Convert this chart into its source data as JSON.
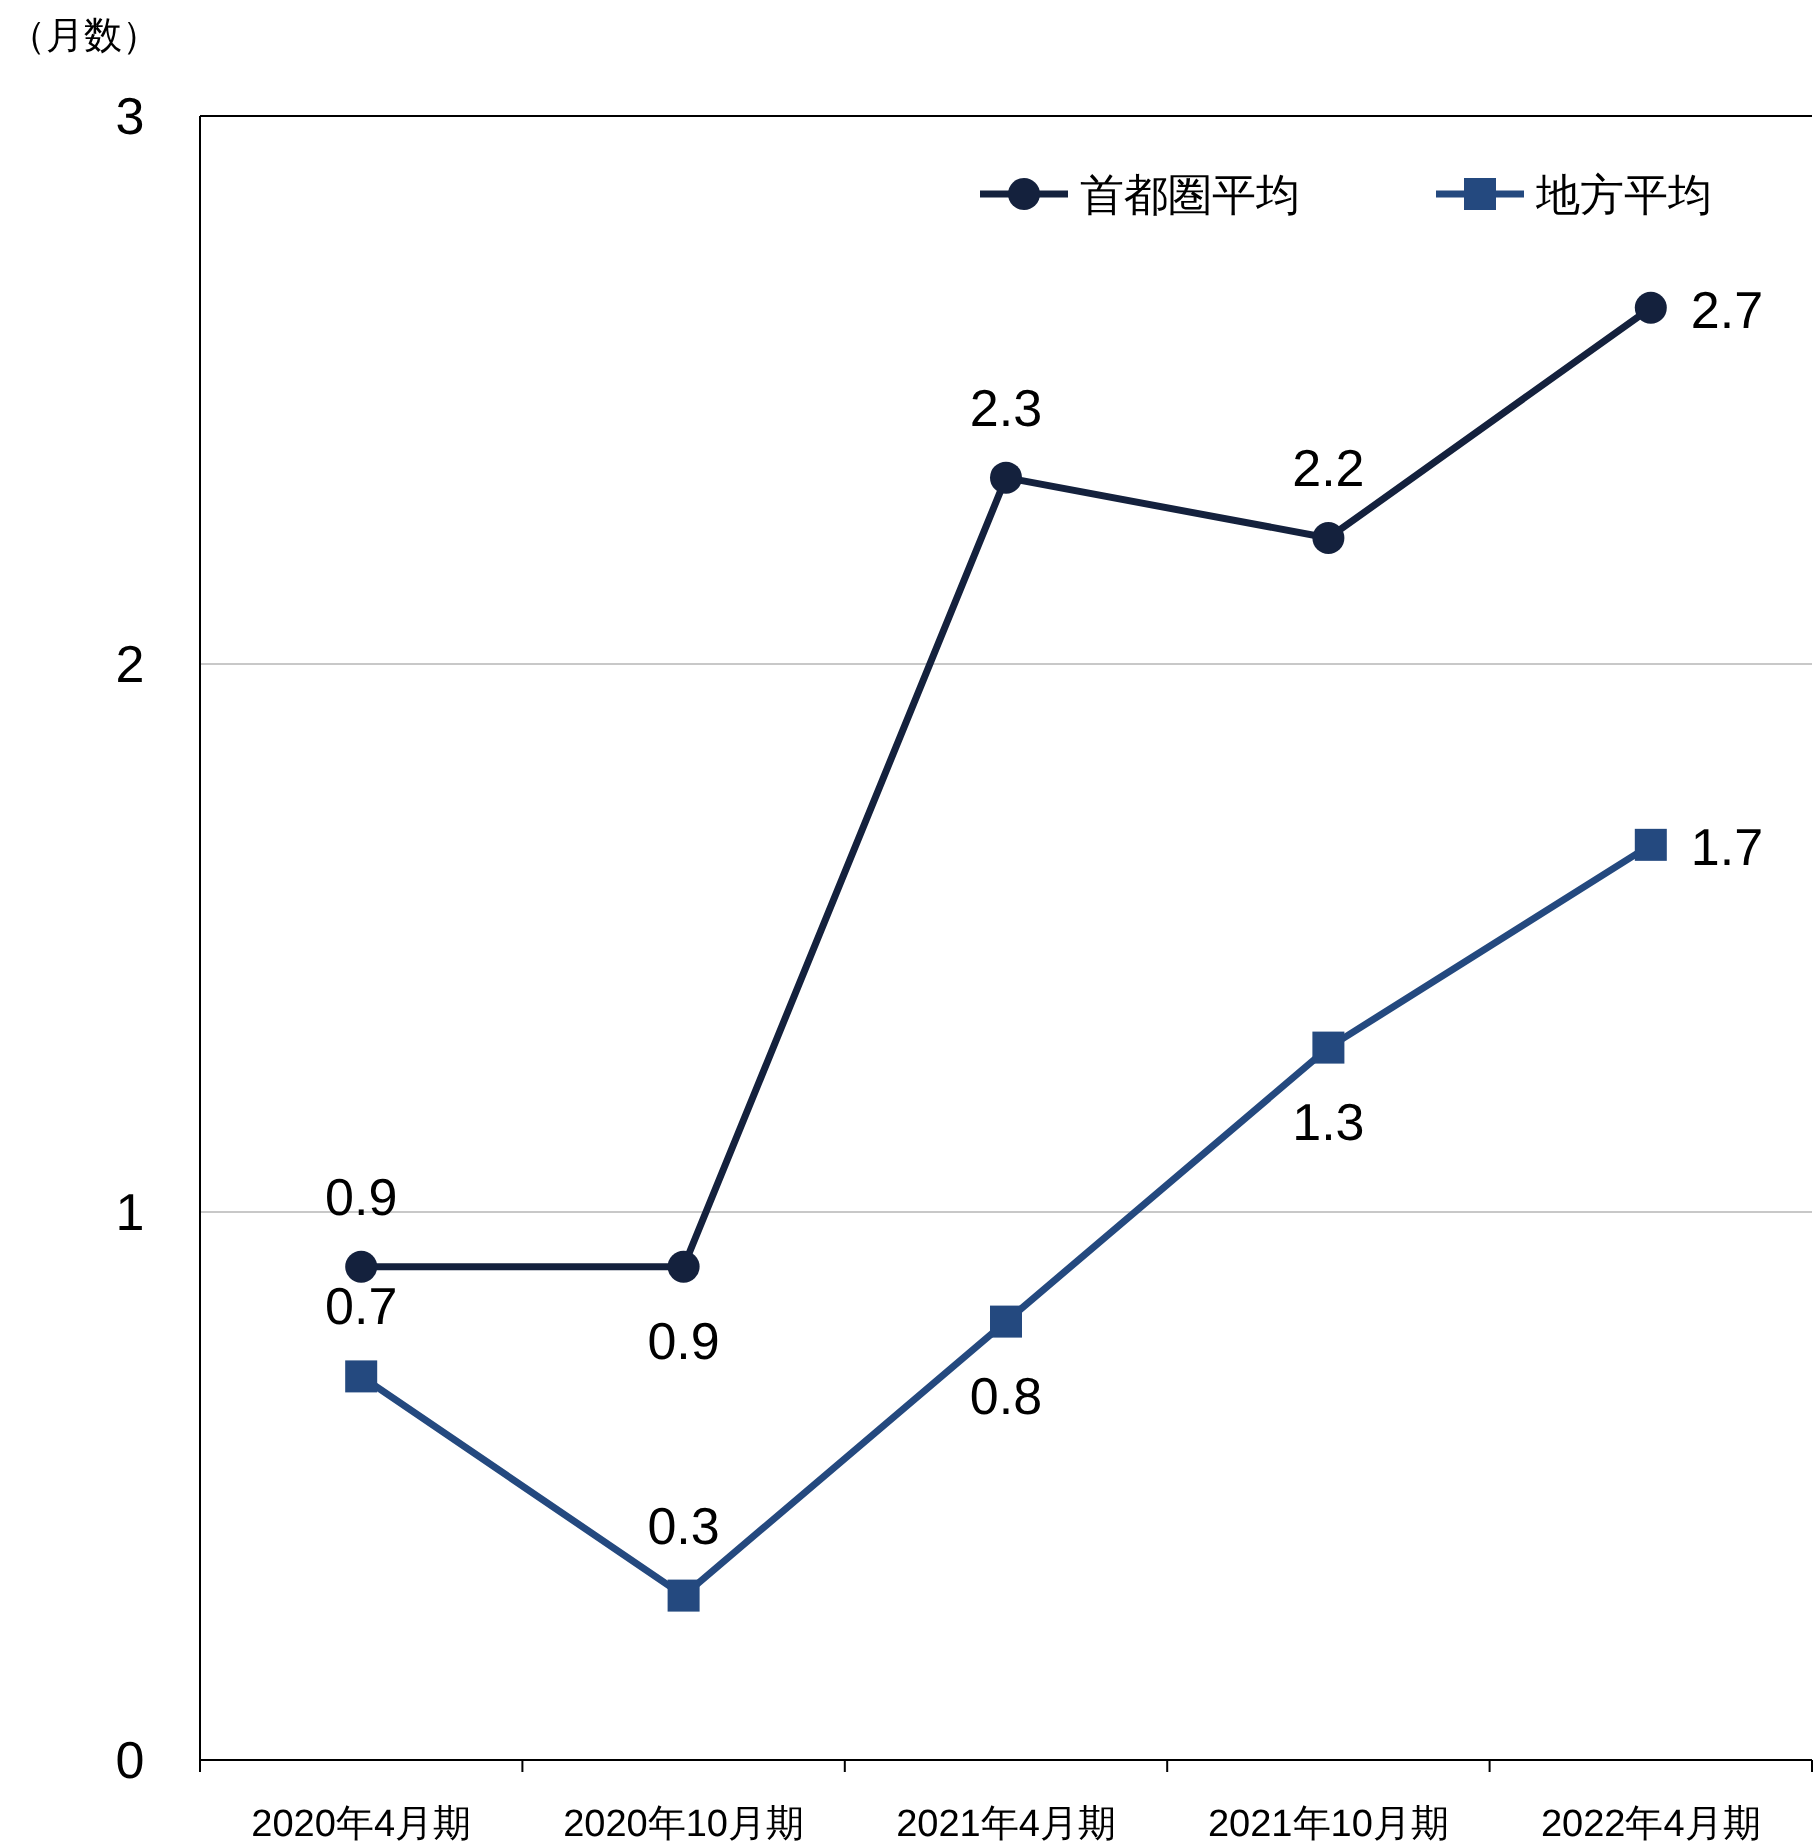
{
  "chart_data": {
    "type": "line",
    "ylabel": "（月数）",
    "categories": [
      "2020年4月期",
      "2020年10月期",
      "2021年4月期",
      "2021年10月期",
      "2022年4月期"
    ],
    "ylim": [
      0,
      3
    ],
    "yticks": [
      0,
      1,
      2,
      3
    ],
    "grid": "y",
    "legend": "top right",
    "series": [
      {
        "name": "首都圏平均",
        "color": "#14213d",
        "marker": "circle",
        "values": [
          0.9,
          0.9,
          2.34,
          2.23,
          2.65
        ],
        "value_labels": [
          "0.9",
          "0.9",
          "2.3",
          "2.2",
          "2.7"
        ]
      },
      {
        "name": "地方平均",
        "color": "#24497f",
        "marker": "square",
        "values": [
          0.7,
          0.3,
          0.8,
          1.3,
          1.67
        ],
        "value_labels": [
          "0.7",
          "0.3",
          "0.8",
          "1.3",
          "1.7"
        ]
      }
    ]
  }
}
